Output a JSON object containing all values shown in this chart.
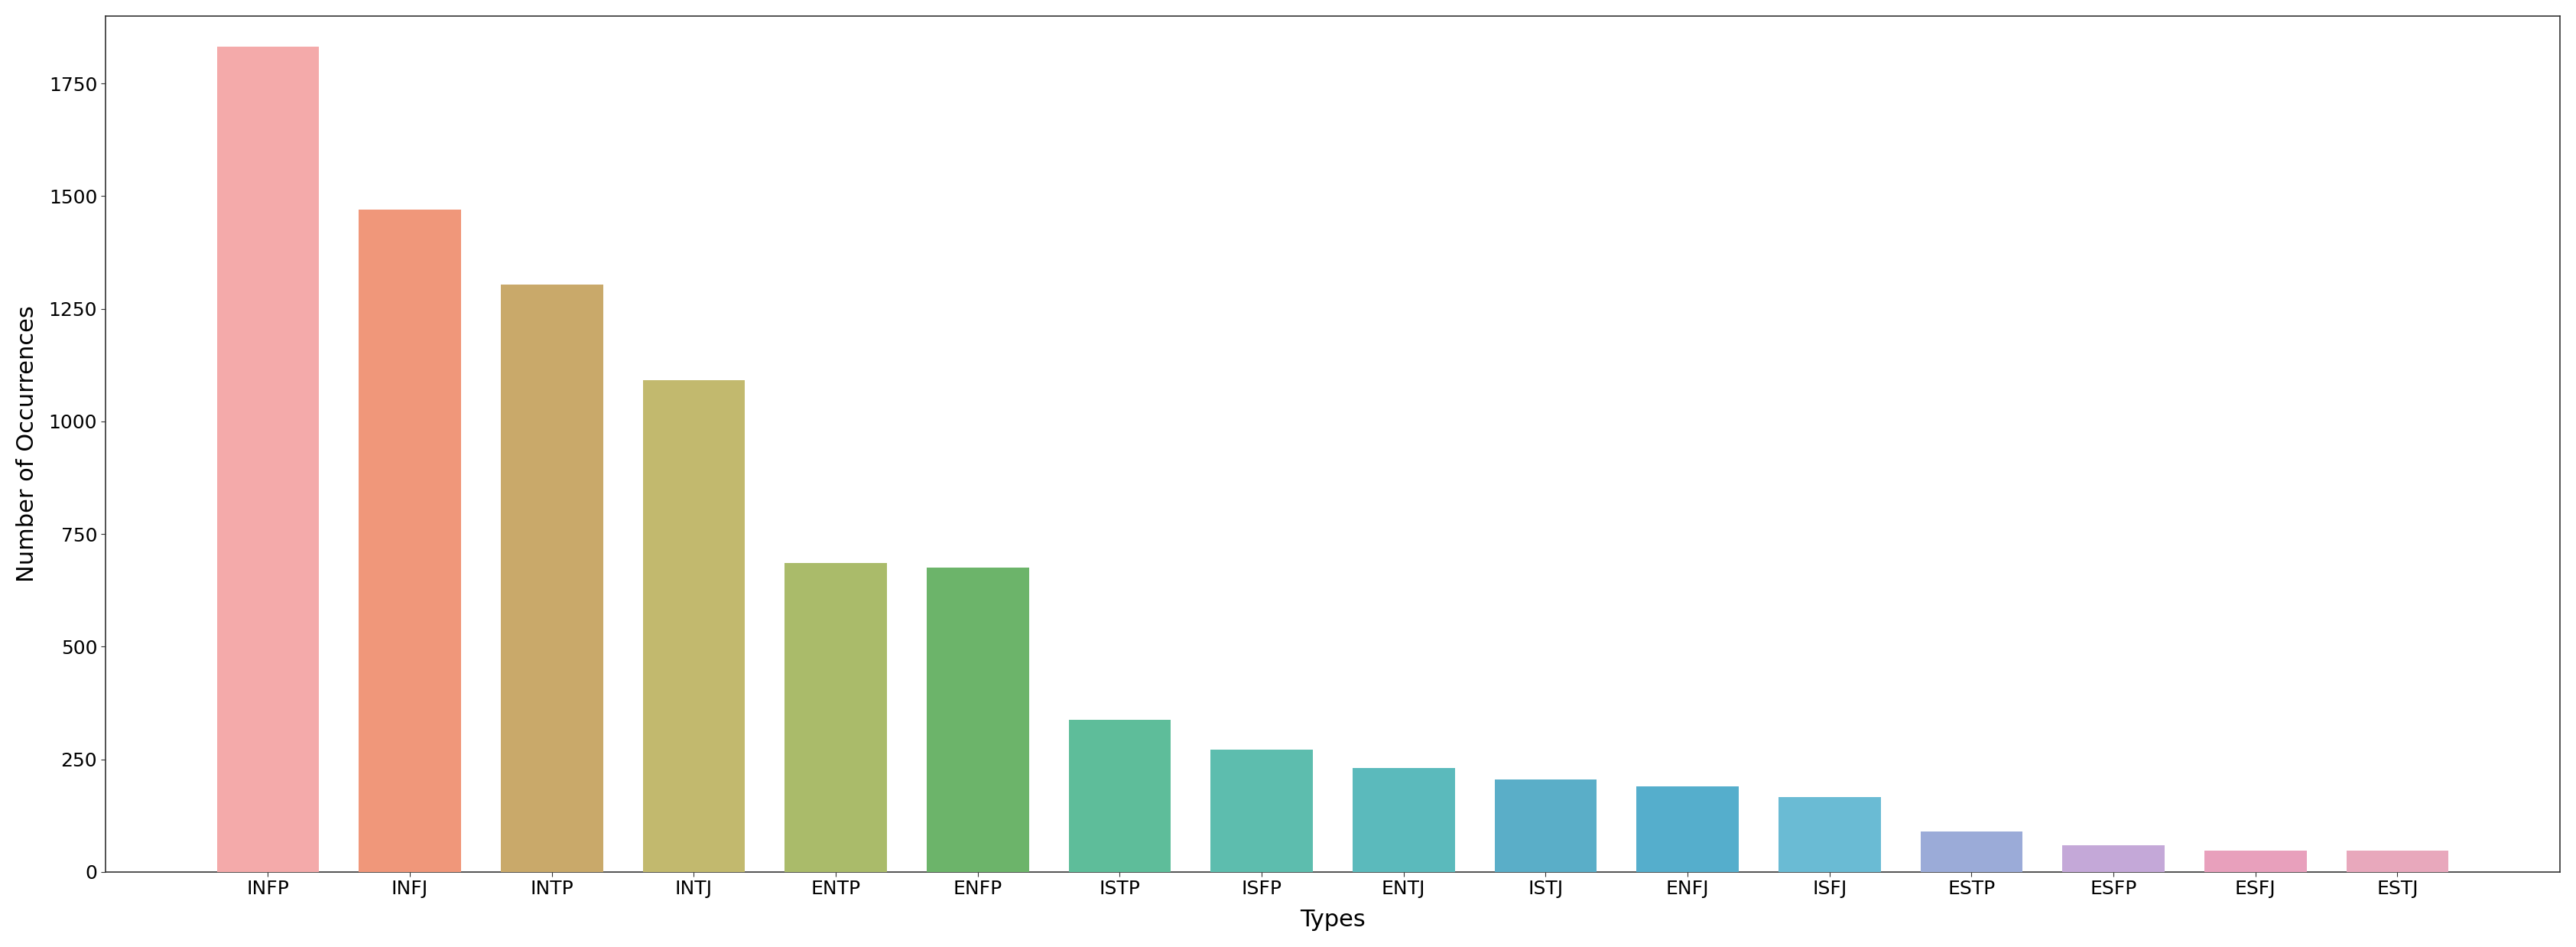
{
  "categories": [
    "INFP",
    "INFJ",
    "INTP",
    "INTJ",
    "ENTP",
    "ENFP",
    "ISTP",
    "ISFP",
    "ENTJ",
    "ISTJ",
    "ENFJ",
    "ISFJ",
    "ESTP",
    "ESFP",
    "ESFJ",
    "ESTJ"
  ],
  "values": [
    1832,
    1470,
    1304,
    1091,
    685,
    675,
    337,
    271,
    231,
    205,
    190,
    166,
    89,
    59,
    48,
    48
  ],
  "bar_colors": [
    "#F4AAAA",
    "#F0977A",
    "#C9A96A",
    "#C2B96E",
    "#AABB6A",
    "#6CB46A",
    "#5EBD9A",
    "#5DBDAE",
    "#5BBABC",
    "#5AAEC8",
    "#55AECC",
    "#6ABBD4",
    "#9BABD8",
    "#C4A8D8",
    "#E8A0BC",
    "#E8A8BC"
  ],
  "title": "",
  "xlabel": "Types",
  "ylabel": "Number of Occurrences",
  "ylim": [
    0,
    1900
  ],
  "yticks": [
    0,
    250,
    500,
    750,
    1000,
    1250,
    1500,
    1750
  ],
  "background_color": "#ffffff",
  "xlabel_fontsize": 22,
  "ylabel_fontsize": 22,
  "tick_fontsize": 18,
  "bar_width": 0.72,
  "spine_color": "#333333"
}
